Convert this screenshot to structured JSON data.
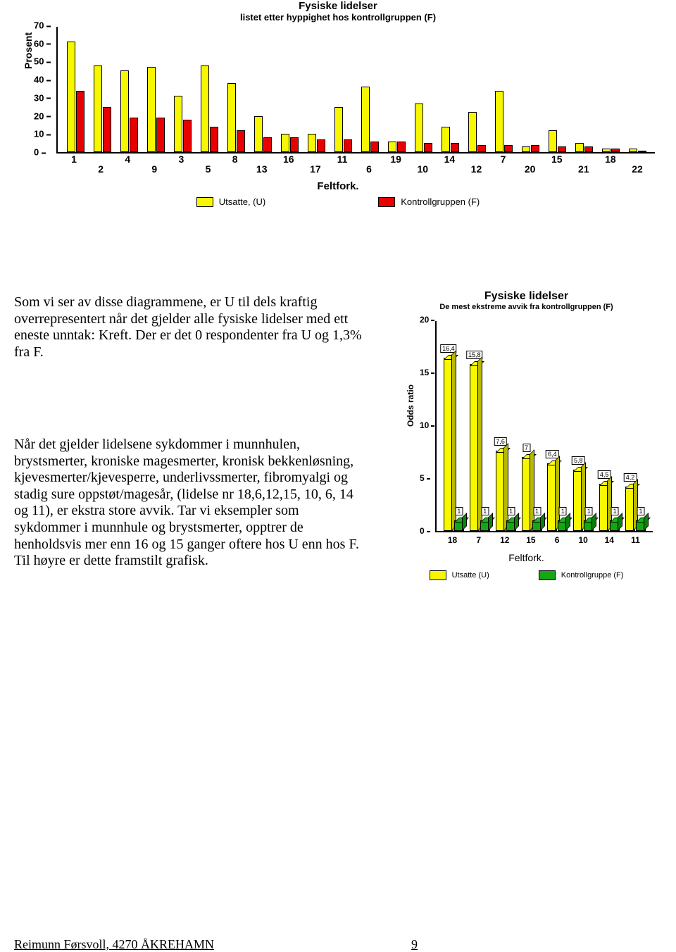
{
  "chart1": {
    "type": "bar",
    "title": "Fysiske lidelser",
    "subtitle": "listet etter hyppighet hos kontrollgruppen (F)",
    "ylabel": "Prosent",
    "ylim": [
      0,
      70
    ],
    "yticks": [
      0,
      10,
      20,
      30,
      40,
      50,
      60,
      70
    ],
    "xaxis_label": "Feltfork.",
    "categories": [
      "1",
      "2",
      "4",
      "9",
      "3",
      "5",
      "8",
      "13",
      "16",
      "17",
      "11",
      "6",
      "19",
      "10",
      "14",
      "12",
      "7",
      "20",
      "15",
      "21",
      "18",
      "22"
    ],
    "series": [
      {
        "name": "Utsatte, (U)",
        "color": "#f7f700",
        "values": [
          61,
          48,
          45,
          47,
          31,
          48,
          38,
          20,
          10,
          10,
          25,
          36,
          6,
          27,
          14,
          22,
          34,
          3,
          12,
          5,
          2,
          2
        ]
      },
      {
        "name": "Kontrollgruppen (F)",
        "color": "#e80000",
        "values": [
          34,
          25,
          19,
          19,
          18,
          14,
          12,
          8,
          8,
          7,
          7,
          6,
          6,
          5,
          5,
          4,
          4,
          4,
          3,
          3,
          2,
          0
        ]
      }
    ],
    "background_color": "#ffffff",
    "bar_border_color": "#000000"
  },
  "paragraphs": {
    "p1": "Som vi ser av disse diagrammene, er U til dels kraftig overrepresentert når det gjelder  alle fysiske lidelser med ett eneste unntak: Kreft.   Der er det 0 respondenter fra U og  1,3% fra F.",
    "p2": "Når det gjelder lidelsene sykdommer i munnhulen, brystsmerter, kroniske magesmerter, kronisk bekkenløsning, kjevesmerter/kjevesperre, underlivssmerter, fibromyalgi og stadig  sure oppstøt/magesår, (lidelse nr 18,6,12,15, 10, 6, 14 og 11), er ekstra store avvik.  Tar vi eksempler som  sykdommer i munnhule og brystsmerter, opptrer de henholdsvis mer enn 16 og 15 ganger oftere hos U enn hos F.",
    "p3": "Til høyre er dette framstilt grafisk."
  },
  "chart2": {
    "type": "bar3d",
    "title": "Fysiske lidelser",
    "subtitle": "De mest ekstreme avvik fra kontrollgruppen (F)",
    "ylabel": "Odds ratio",
    "ylim": [
      0,
      20
    ],
    "yticks": [
      0,
      5,
      10,
      15,
      20
    ],
    "xaxis_label": "Feltfork.",
    "categories": [
      "18",
      "7",
      "12",
      "15",
      "6",
      "10",
      "14",
      "11"
    ],
    "series": [
      {
        "name": "Utsatte (U)",
        "color": "#f7f700",
        "values": [
          16.4,
          15.8,
          7.6,
          7,
          6.4,
          5.8,
          4.5,
          4.2
        ],
        "value_labels": [
          "16,4",
          "15,8",
          "7,6",
          "7",
          "6,4",
          "5,8",
          "4,5",
          "4,2"
        ]
      },
      {
        "name": "Kontrollgruppe (F)",
        "color": "#11a811",
        "values": [
          1,
          1,
          1,
          1,
          1,
          1,
          1,
          1
        ],
        "value_labels": [
          "1",
          "1",
          "1",
          "1",
          "1",
          "1",
          "1",
          "1"
        ]
      }
    ],
    "background_color": "#ffffff"
  },
  "footer": {
    "author": "Reimunn Førsvoll, 4270 ÅKREHAMN",
    "page": "9"
  }
}
